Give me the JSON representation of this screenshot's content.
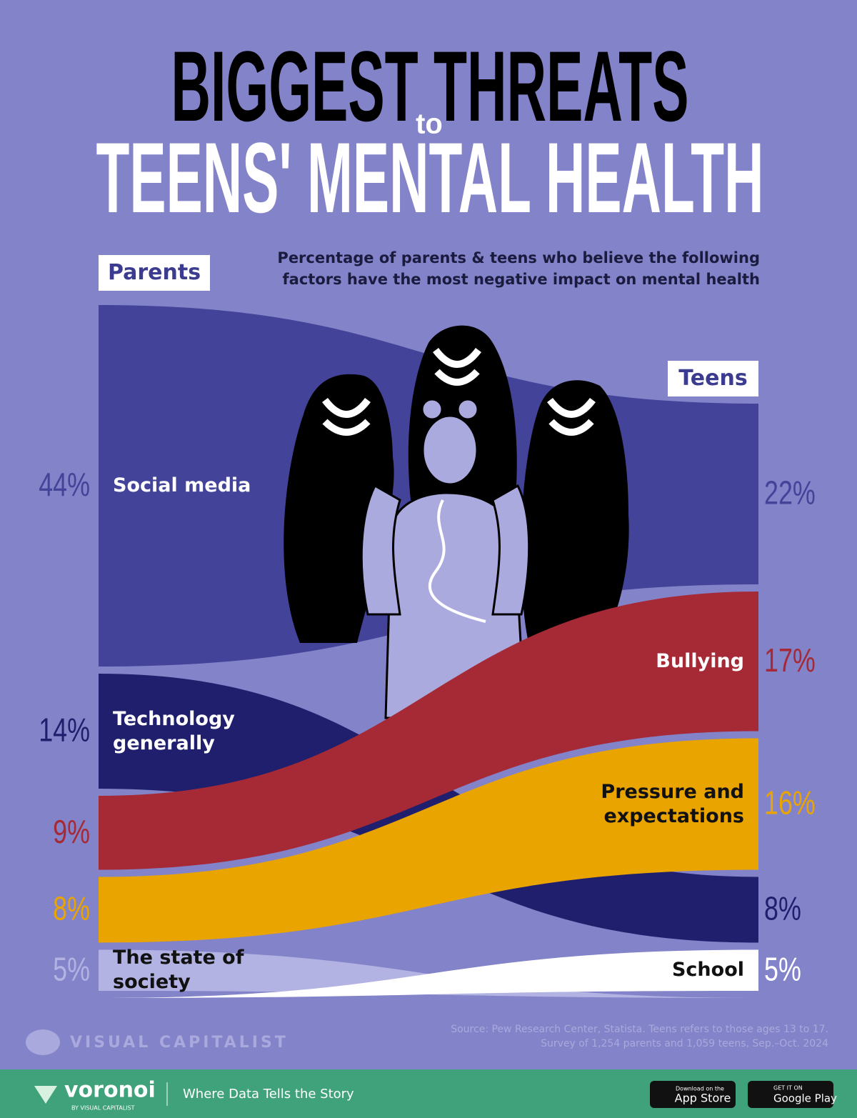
{
  "chart_data": {
    "type": "ribbon",
    "title": [
      "BIGGEST THREATS",
      "to",
      "TEENS' MENTAL HEALTH"
    ],
    "subtitle": "Percentage of parents & teens who believe the following factors have the most negative impact on mental health",
    "categories": [
      "Parents",
      "Teens"
    ],
    "series": [
      {
        "name": "Social media",
        "color": "#43439a",
        "values": [
          44,
          22
        ],
        "value_labels": [
          "44%",
          "22%"
        ]
      },
      {
        "name": "Technology generally",
        "color": "#1f1f6e",
        "values": [
          14,
          8
        ],
        "value_labels": [
          "14%",
          "8%"
        ]
      },
      {
        "name": "Bullying",
        "color": "#a52a35",
        "values": [
          9,
          17
        ],
        "value_labels": [
          "9%",
          "17%"
        ]
      },
      {
        "name": "Pressure and expectations",
        "color": "#eaa400",
        "values": [
          8,
          16
        ],
        "value_labels": [
          "8%",
          "16%"
        ]
      },
      {
        "name": "The state of society",
        "color": "#b3b3e3",
        "values": [
          5,
          null
        ],
        "value_labels": [
          "5%",
          null
        ]
      },
      {
        "name": "School",
        "color": "#ffffff",
        "values": [
          null,
          5
        ],
        "value_labels": [
          null,
          "5%"
        ]
      }
    ],
    "source": [
      "Source: Pew Research Center, Statista. Teens refers to those ages 13 to 17.",
      "Survey of 1,254 parents and 1,059 teens, Sep.–Oct. 2024"
    ]
  },
  "footer": {
    "brand": "VISUAL CAPITALIST",
    "voronoi": "voronoi",
    "voronoi_by": "BY VISUAL CAPITALIST",
    "tagline": "Where Data Tells the Story",
    "app_store": [
      "Download on the",
      "App Store"
    ],
    "google_play": [
      "GET IT ON",
      "Google Play"
    ]
  }
}
